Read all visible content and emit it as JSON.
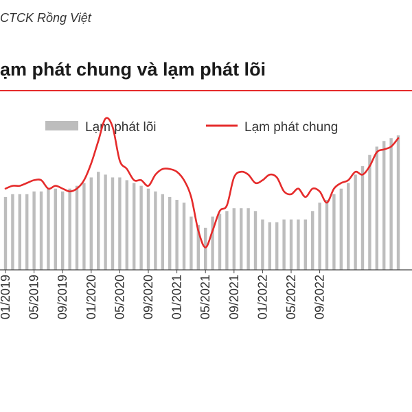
{
  "header": {
    "source": "CTCK Rồng Việt",
    "title": "ạm phát chung và lạm phát lõi"
  },
  "colors": {
    "core": "#bdbdbd",
    "headline": "#e52b2b",
    "rule": "#e52b2b"
  },
  "chart_data": {
    "type": "bar+line",
    "legend_position": "top",
    "series": [
      {
        "name": "Lạm phát lõi",
        "type": "bar",
        "values": [
          2.6,
          2.7,
          2.7,
          2.7,
          2.8,
          2.8,
          2.9,
          2.9,
          2.8,
          2.9,
          3.0,
          3.1,
          3.3,
          3.5,
          3.4,
          3.3,
          3.3,
          3.2,
          3.1,
          3.0,
          2.9,
          2.8,
          2.7,
          2.6,
          2.5,
          2.4,
          1.9,
          1.6,
          1.5,
          1.9,
          2.0,
          2.1,
          2.2,
          2.2,
          2.2,
          2.1,
          1.8,
          1.7,
          1.7,
          1.8,
          1.8,
          1.8,
          1.8,
          2.1,
          2.4,
          2.5,
          2.7,
          2.9,
          3.1,
          3.4,
          3.7,
          4.1,
          4.4,
          4.6,
          4.7,
          4.8
        ]
      },
      {
        "name": "Lạm phát chung",
        "type": "line",
        "values": [
          2.9,
          3.0,
          3.0,
          3.1,
          3.2,
          3.2,
          2.9,
          3.0,
          2.9,
          2.8,
          2.9,
          3.2,
          3.8,
          4.6,
          5.4,
          5.1,
          3.9,
          3.6,
          3.2,
          3.2,
          3.0,
          3.4,
          3.6,
          3.6,
          3.5,
          3.2,
          2.6,
          1.4,
          0.8,
          1.4,
          2.1,
          2.3,
          3.3,
          3.5,
          3.4,
          3.1,
          3.2,
          3.4,
          3.3,
          2.8,
          2.7,
          2.9,
          2.6,
          2.9,
          2.8,
          2.4,
          2.9,
          3.1,
          3.2,
          3.5,
          3.4,
          3.7,
          4.2,
          4.3,
          4.4,
          4.7
        ]
      }
    ],
    "x_tick_labels": [
      "01/2019",
      "05/2019",
      "09/2019",
      "01/2020",
      "05/2020",
      "09/2020",
      "01/2021",
      "05/2021",
      "09/2021",
      "01/2022",
      "05/2022",
      "09/2022"
    ],
    "ylim": [
      0,
      6
    ],
    "grid": false
  }
}
